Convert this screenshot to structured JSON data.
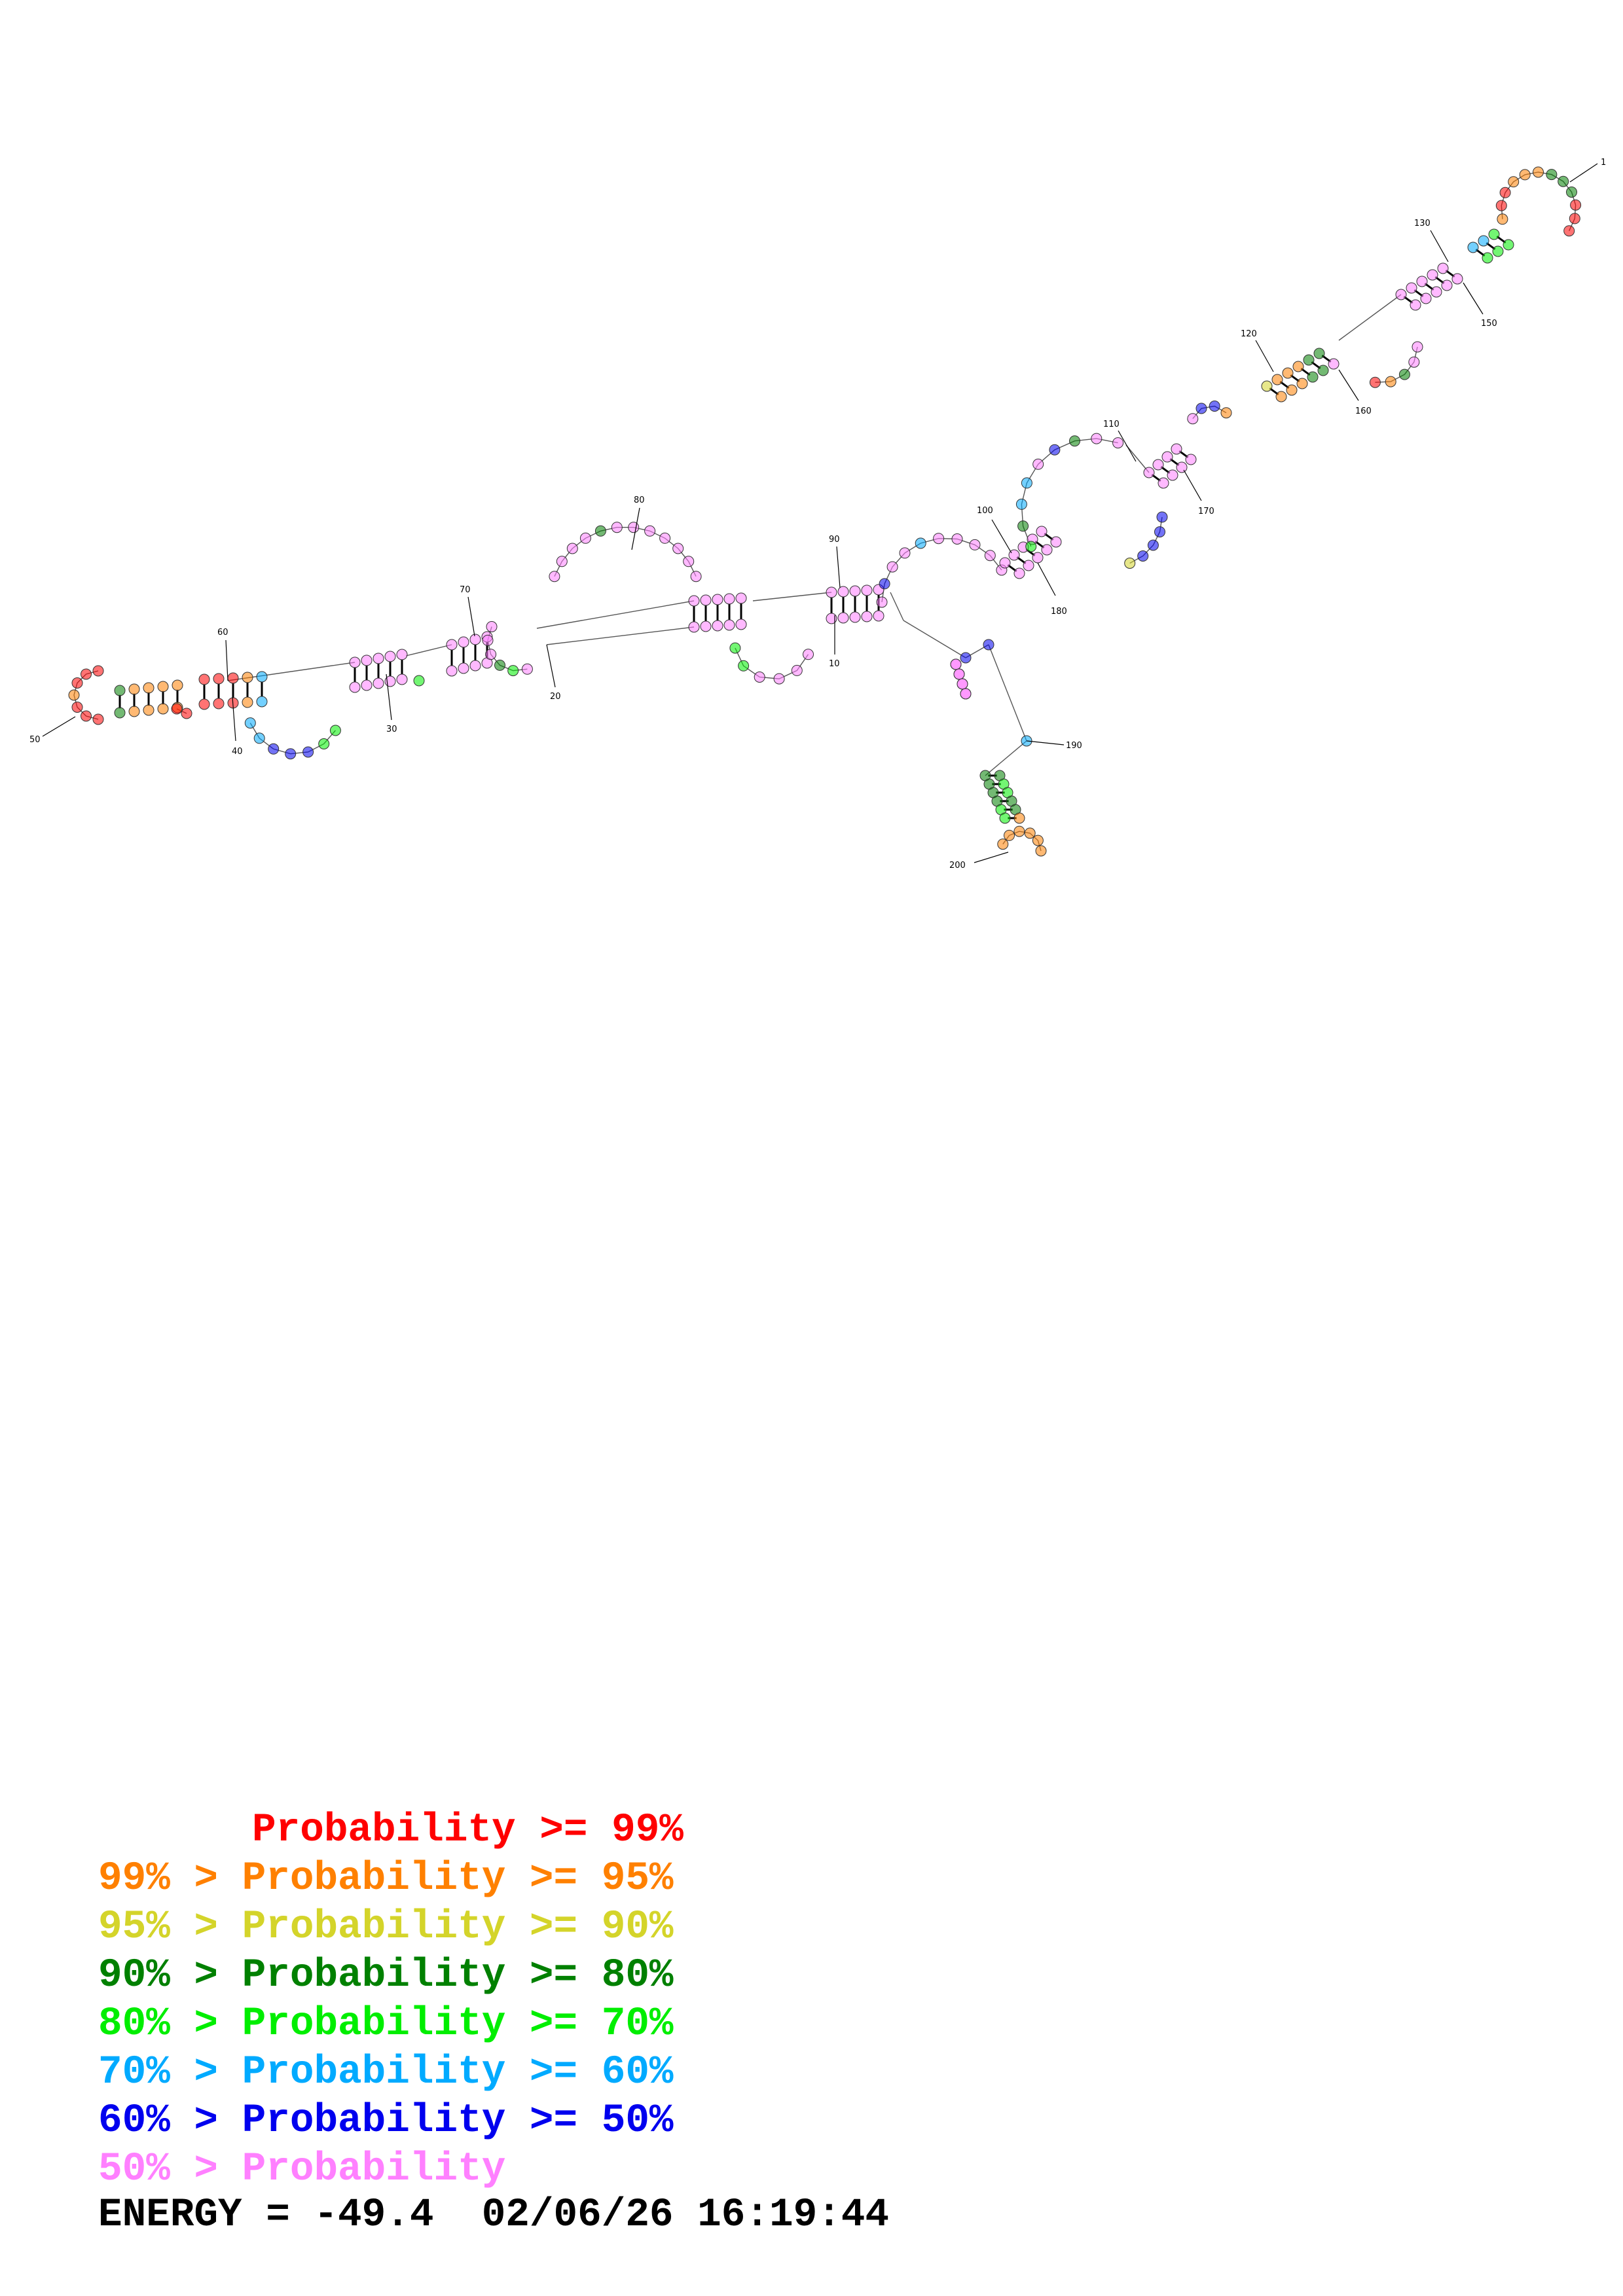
{
  "diagram": {
    "position_labels": [
      "1",
      "10",
      "20",
      "30",
      "40",
      "50",
      "60",
      "70",
      "80",
      "90",
      "100",
      "110",
      "120",
      "130",
      "150",
      "160",
      "170",
      "180",
      "190",
      "200"
    ],
    "colors": {
      "p99": "#ff0000",
      "p95": "#ff8000",
      "p90": "#d4d42a",
      "p80": "#008000",
      "p70": "#00ee00",
      "p60": "#00aaff",
      "p50": "#0000ee",
      "plow": "#ff80ff"
    }
  },
  "legend": {
    "rows": [
      {
        "prefix": "    ",
        "text": "Probability >= 99%",
        "color": "#ff0000"
      },
      {
        "prefix": "",
        "text": "99% > Probability >= 95%",
        "color": "#ff8000"
      },
      {
        "prefix": "",
        "text": "95% > Probability >= 90%",
        "color": "#d4d42a"
      },
      {
        "prefix": "",
        "text": "90% > Probability >= 80%",
        "color": "#008000"
      },
      {
        "prefix": "",
        "text": "80% > Probability >= 70%",
        "color": "#00ee00"
      },
      {
        "prefix": "",
        "text": "70% > Probability >= 60%",
        "color": "#00aaff"
      },
      {
        "prefix": "",
        "text": "60% > Probability >= 50%",
        "color": "#0000ee"
      },
      {
        "prefix": "",
        "text": "50% > Probability",
        "color": "#ff80ff"
      }
    ]
  },
  "footer": {
    "energy": "ENERGY = -49.4  02/06/26 16:19:44"
  }
}
